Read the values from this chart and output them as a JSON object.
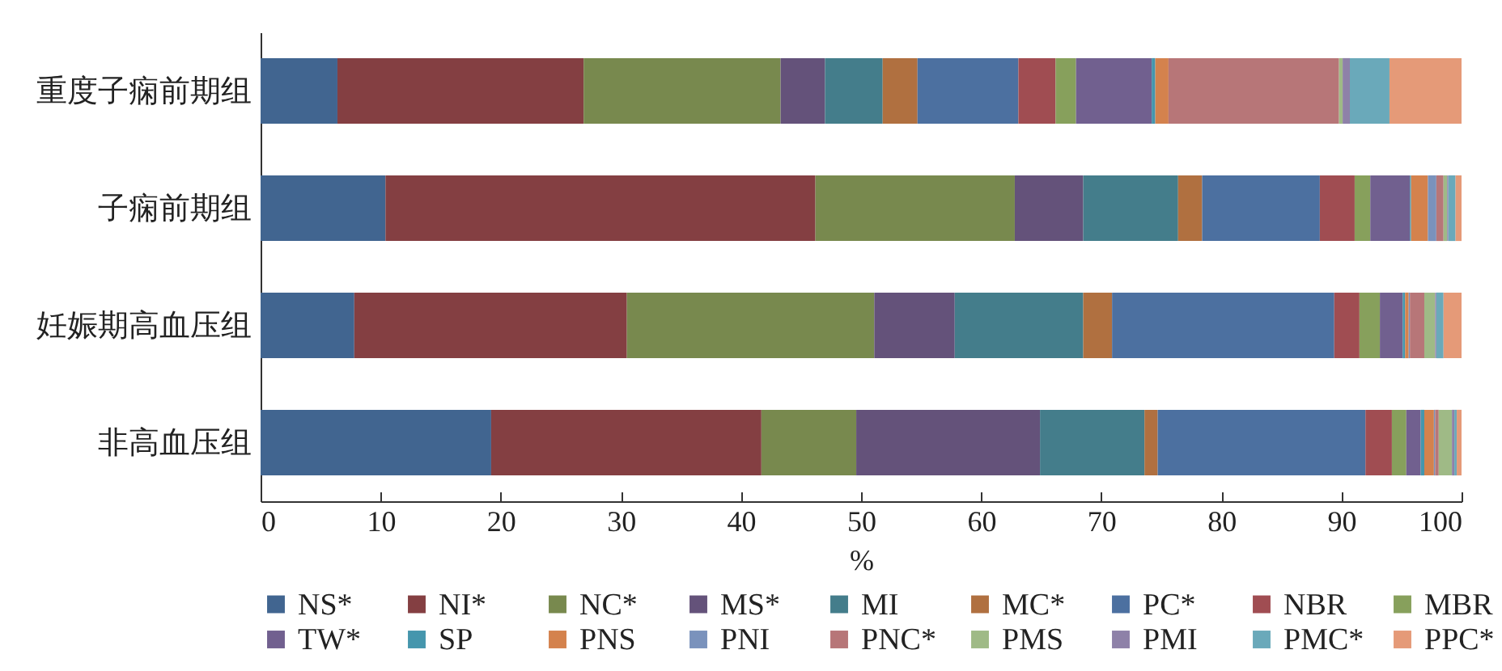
{
  "chart_data": {
    "type": "bar",
    "orientation": "horizontal",
    "stacked": true,
    "xlabel": "%",
    "legend": "bottom",
    "xlim": [
      0,
      100
    ],
    "xticks": [
      0,
      10,
      20,
      30,
      40,
      50,
      60,
      70,
      80,
      90,
      100
    ],
    "categories": [
      "重度子痫前期组",
      "子痫前期组",
      "妊娠期高血压组",
      "非高血压组"
    ],
    "series": [
      {
        "name": "NS*",
        "color": "#416590",
        "values": [
          6.4,
          10.4,
          7.8,
          19.2
        ]
      },
      {
        "name": "NI*",
        "color": "#843f42",
        "values": [
          20.5,
          35.8,
          22.7,
          22.5
        ]
      },
      {
        "name": "NC*",
        "color": "#78894e",
        "values": [
          16.4,
          16.6,
          20.6,
          7.9
        ]
      },
      {
        "name": "MS*",
        "color": "#64527a",
        "values": [
          3.7,
          5.7,
          6.7,
          15.3
        ]
      },
      {
        "name": "MI",
        "color": "#447d8b",
        "values": [
          4.8,
          7.9,
          10.7,
          8.7
        ]
      },
      {
        "name": "MC*",
        "color": "#b07040",
        "values": [
          2.9,
          2.0,
          2.4,
          1.1
        ]
      },
      {
        "name": "PC*",
        "color": "#4c70a0",
        "values": [
          8.4,
          9.8,
          18.5,
          17.3
        ]
      },
      {
        "name": "NBR",
        "color": "#a04d52",
        "values": [
          3.1,
          2.9,
          2.1,
          2.2
        ]
      },
      {
        "name": "MBR",
        "color": "#87a05c",
        "values": [
          1.7,
          1.3,
          1.7,
          1.2
        ]
      },
      {
        "name": "TW*",
        "color": "#71608f",
        "values": [
          6.3,
          3.3,
          1.9,
          1.2
        ]
      },
      {
        "name": "SP",
        "color": "#4596ad",
        "values": [
          0.3,
          0.1,
          0.2,
          0.3
        ]
      },
      {
        "name": "PNS",
        "color": "#d4824d",
        "values": [
          1.1,
          1.4,
          0.3,
          0.8
        ]
      },
      {
        "name": "PNI",
        "color": "#7a92bc",
        "values": [
          0,
          0.7,
          0.1,
          0.1
        ]
      },
      {
        "name": "PNC*",
        "color": "#b77678",
        "values": [
          14.2,
          0.6,
          1.2,
          0.3
        ]
      },
      {
        "name": "PMS",
        "color": "#9fba86",
        "values": [
          0.3,
          0.3,
          0.9,
          1.1
        ]
      },
      {
        "name": "PMI",
        "color": "#8e81a8",
        "values": [
          0.6,
          0.1,
          0.1,
          0.2
        ]
      },
      {
        "name": "PMC*",
        "color": "#6aa9ba",
        "values": [
          3.3,
          0.6,
          0.6,
          0.2
        ]
      },
      {
        "name": "PPC*",
        "color": "#e59a78",
        "values": [
          6.0,
          0.5,
          1.5,
          0.4
        ]
      }
    ]
  }
}
